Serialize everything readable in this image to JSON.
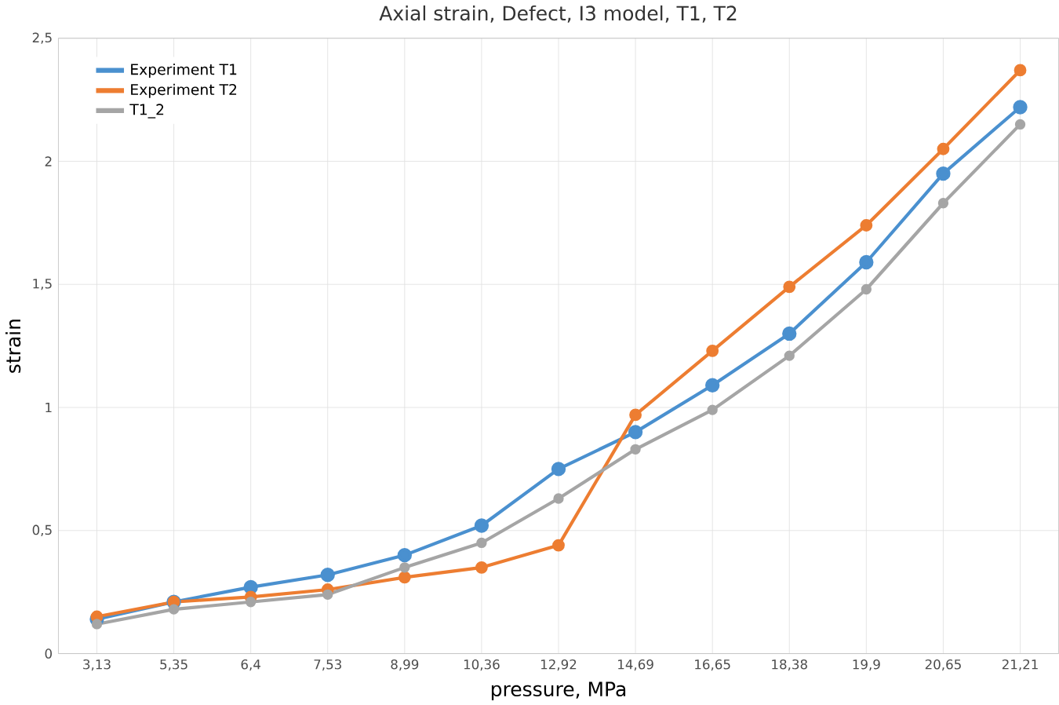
{
  "chart_data": {
    "type": "line",
    "title": "Axial strain, Defect, I3 model, T1, T2",
    "xlabel": "pressure, MPa",
    "ylabel": "strain",
    "categories": [
      "3,13",
      "5,35",
      "6,4",
      "7,53",
      "8,99",
      "10,36",
      "12,92",
      "14,69",
      "16,65",
      "18,38",
      "19,9",
      "20,65",
      "21,21"
    ],
    "ylim": [
      0,
      2.5
    ],
    "yticks": [
      0,
      {
        "value": 0.5,
        "label": "0,5"
      },
      1,
      {
        "value": 1.5,
        "label": "1,5"
      },
      2,
      {
        "value": 2.5,
        "label": "2,5"
      }
    ],
    "grid": true,
    "legend": "top left",
    "marker": "circle",
    "series": [
      {
        "name": "Experiment T1",
        "color": "#4a90cf",
        "values": [
          0.14,
          0.21,
          0.27,
          0.32,
          0.4,
          0.52,
          0.75,
          0.9,
          1.09,
          1.3,
          1.59,
          1.95,
          2.22
        ]
      },
      {
        "name": "Experiment T2",
        "color": "#ed7d31",
        "values": [
          0.15,
          0.21,
          0.23,
          0.26,
          0.31,
          0.35,
          0.44,
          0.97,
          1.23,
          1.49,
          1.74,
          2.05,
          2.37
        ]
      },
      {
        "name": "T1_2",
        "color": "#a5a5a5",
        "values": [
          0.12,
          0.18,
          0.21,
          0.24,
          0.35,
          0.45,
          0.63,
          0.83,
          0.99,
          1.21,
          1.48,
          1.83,
          2.15
        ]
      }
    ]
  }
}
